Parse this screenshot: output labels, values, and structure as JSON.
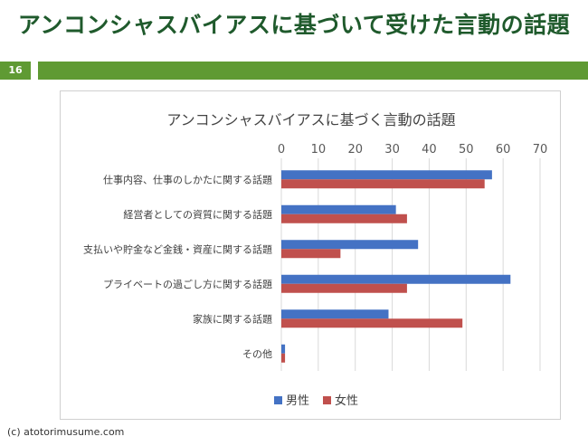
{
  "slide": {
    "title": "アンコンシャスバイアスに基づいて受けた言動の話題",
    "page_number": "16",
    "copyright": "(c) atotorimusume.com"
  },
  "chart_data": {
    "type": "bar",
    "orientation": "horizontal",
    "title": "アンコンシャスバイアスに基づく言動の話題",
    "categories": [
      "仕事内容、仕事のしかたに関する話題",
      "経営者としての資質に関する話題",
      "支払いや貯金など金銭・資産に関する話題",
      "プライベートの過ごし方に関する話題",
      "家族に関する話題",
      "その他"
    ],
    "series": [
      {
        "name": "男性",
        "color": "#4472c4",
        "values": [
          57,
          31,
          37,
          62,
          29,
          1
        ]
      },
      {
        "name": "女性",
        "color": "#c0504d",
        "values": [
          55,
          34,
          16,
          34,
          49,
          1
        ]
      }
    ],
    "xlim": [
      0,
      70
    ],
    "xticks": [
      0,
      10,
      20,
      30,
      40,
      50,
      60,
      70
    ],
    "grid": true,
    "legend_position": "bottom"
  }
}
